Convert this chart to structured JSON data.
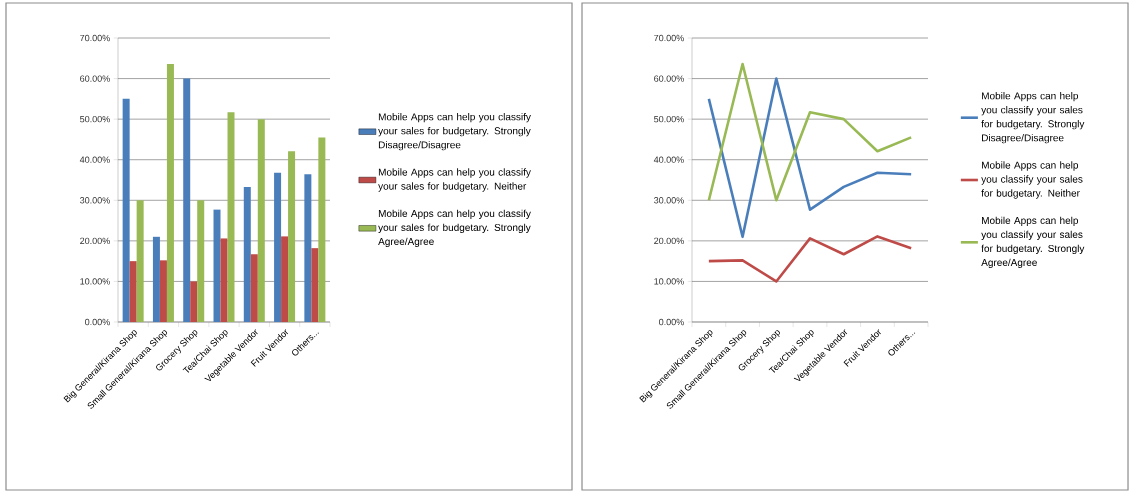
{
  "chart_data": [
    {
      "type": "bar",
      "categories": [
        "Big General/Kirana Shop",
        "Small General/Kirana Shop",
        "Grocery Shop",
        "Tea/Chai Shop",
        "Vegetable Vendor",
        "Fruit Vendor",
        "Others..."
      ],
      "series": [
        {
          "name": "Mobile Apps can help you classify your sales for budgetary. Strongly Disagree/Disagree",
          "color": "#4a7ebb",
          "values": [
            55,
            21,
            60,
            27.7,
            33.3,
            36.8,
            36.4
          ]
        },
        {
          "name": "Mobile Apps can help you classify your sales for budgetary. Neither",
          "color": "#be4b48",
          "values": [
            15,
            15.2,
            10,
            20.6,
            16.7,
            21.1,
            18.2
          ]
        },
        {
          "name": "Mobile Apps can help you classify your sales for budgetary. Strongly Agree/Agree",
          "color": "#98b954",
          "values": [
            30,
            63.6,
            30,
            51.7,
            50,
            42.1,
            45.5
          ]
        }
      ],
      "ylim": [
        0,
        70
      ],
      "yticks": [
        {
          "value": 0,
          "label": "0.00%"
        },
        {
          "value": 10,
          "label": "10.00%"
        },
        {
          "value": 20,
          "label": "20.00%"
        },
        {
          "value": 30,
          "label": "30.00%"
        },
        {
          "value": 40,
          "label": "40.00%"
        },
        {
          "value": 50,
          "label": "50.00%"
        },
        {
          "value": 60,
          "label": "60.00%"
        },
        {
          "value": 70,
          "label": "70.00%"
        }
      ],
      "grid": "y",
      "legend": "right"
    },
    {
      "type": "line",
      "categories": [
        "Big General/Kirana Shop",
        "Small General/Kirana Shop",
        "Grocery Shop",
        "Tea/Chai Shop",
        "Vegetable Vendor",
        "Fruit Vendor",
        "Others..."
      ],
      "series": [
        {
          "name": "Mobile Apps can help you classify your sales for budgetary. Strongly Disagree/Disagree",
          "color": "#4a7ebb",
          "values": [
            55,
            21,
            60,
            27.7,
            33.3,
            36.8,
            36.4
          ]
        },
        {
          "name": "Mobile Apps can help you classify your sales for budgetary. Neither",
          "color": "#be4b48",
          "values": [
            15,
            15.2,
            10,
            20.6,
            16.7,
            21.1,
            18.2
          ]
        },
        {
          "name": "Mobile Apps can help you classify your sales for budgetary. Strongly Agree/Agree",
          "color": "#98b954",
          "values": [
            30,
            63.6,
            30,
            51.7,
            50,
            42.1,
            45.5
          ]
        }
      ],
      "ylim": [
        0,
        70
      ],
      "yticks": [
        {
          "value": 0,
          "label": "0.00%"
        },
        {
          "value": 10,
          "label": "10.00%"
        },
        {
          "value": 20,
          "label": "20.00%"
        },
        {
          "value": 30,
          "label": "30.00%"
        },
        {
          "value": 40,
          "label": "40.00%"
        },
        {
          "value": 50,
          "label": "50.00%"
        },
        {
          "value": 60,
          "label": "60.00%"
        },
        {
          "value": 70,
          "label": "70.00%"
        }
      ],
      "grid": "y",
      "legend": "right",
      "marker": "none",
      "line_style": "solid"
    }
  ]
}
